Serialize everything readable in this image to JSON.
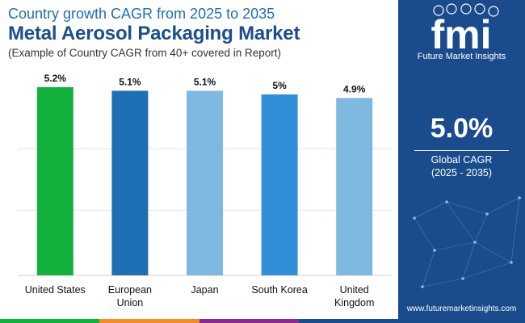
{
  "header": {
    "kicker": "Country growth CAGR from 2025 to 2035",
    "title": "Metal Aerosol Packaging Market",
    "subtitle": "(Example of Country CAGR from 40+ covered in Report)"
  },
  "chart_data": {
    "type": "bar",
    "categories": [
      [
        "United States"
      ],
      [
        "European",
        "Union"
      ],
      [
        "Japan"
      ],
      [
        "South Korea"
      ],
      [
        "United",
        "Kingdom"
      ]
    ],
    "values": [
      5.2,
      5.1,
      5.1,
      5.0,
      4.9
    ],
    "value_labels": [
      "5.2%",
      "5.1%",
      "5.1%",
      "5%",
      "4.9%"
    ],
    "colors": [
      "#13b13d",
      "#1f6fb5",
      "#7fb8e1",
      "#2f8fd8",
      "#7fb8e1"
    ],
    "ylim": [
      0,
      5.6
    ],
    "grid": true,
    "title": "",
    "xlabel": "",
    "ylabel": ""
  },
  "panel": {
    "logo_text": "fmi",
    "brand": "Future Market Insights",
    "big_value": "5.0%",
    "big_label": "Global CAGR",
    "big_period": "(2025 - 2035)",
    "website": "www.futuremarketinsights.com"
  },
  "footer_colors": [
    "#13b13d",
    "#f28c28",
    "#8a2c8f",
    "#1a4b8c"
  ]
}
